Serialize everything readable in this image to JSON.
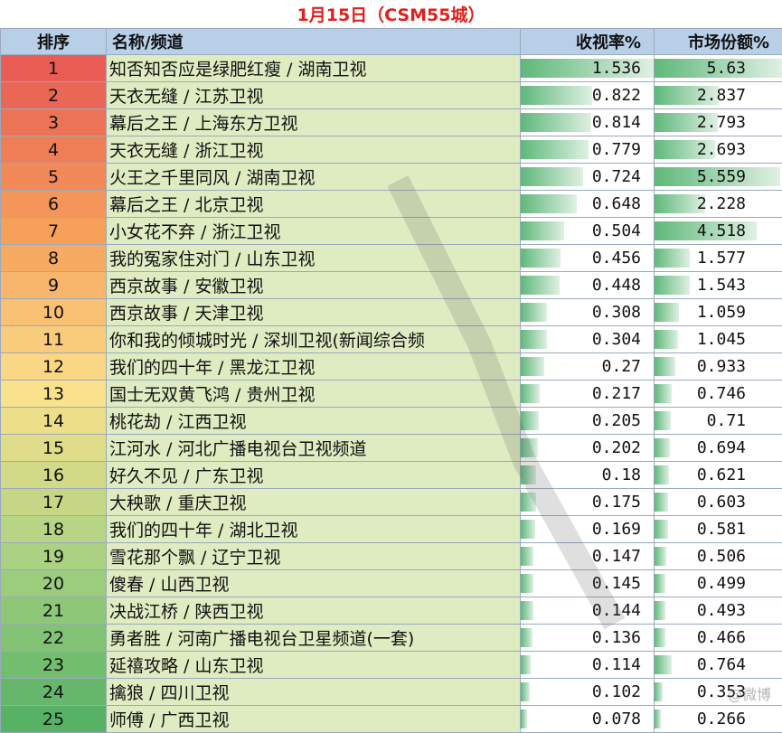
{
  "title": "1月15日（CSM55城）",
  "headers": {
    "rank": "排序",
    "name": "名称/频道",
    "rating": "收视率%",
    "share": "市场份额%"
  },
  "colors": {
    "header_bg": "#b8cfe8",
    "name_bg": "#dfecc2",
    "title_text": "#e0201c",
    "bar_green": "#5fb87a"
  },
  "watermark": "@微博",
  "rows": [
    {
      "rank": "1",
      "name": "知否知否应是绿肥红瘦 / 湖南卫视",
      "rating": "1.536",
      "share": "5.63",
      "rating_value": 1.536,
      "share_value": 5.63
    },
    {
      "rank": "2",
      "name": "天衣无缝 / 江苏卫视",
      "rating": "0.822",
      "share": "2.837",
      "rating_value": 0.822,
      "share_value": 2.837
    },
    {
      "rank": "3",
      "name": "幕后之王 / 上海东方卫视",
      "rating": "0.814",
      "share": "2.793",
      "rating_value": 0.814,
      "share_value": 2.793
    },
    {
      "rank": "4",
      "name": "天衣无缝 / 浙江卫视",
      "rating": "0.779",
      "share": "2.693",
      "rating_value": 0.779,
      "share_value": 2.693
    },
    {
      "rank": "5",
      "name": "火王之千里同风 / 湖南卫视",
      "rating": "0.724",
      "share": "5.559",
      "rating_value": 0.724,
      "share_value": 5.559
    },
    {
      "rank": "6",
      "name": "幕后之王 / 北京卫视",
      "rating": "0.648",
      "share": "2.228",
      "rating_value": 0.648,
      "share_value": 2.228
    },
    {
      "rank": "7",
      "name": "小女花不弃 / 浙江卫视",
      "rating": "0.504",
      "share": "4.518",
      "rating_value": 0.504,
      "share_value": 4.518
    },
    {
      "rank": "8",
      "name": "我的冤家住对门 / 山东卫视",
      "rating": "0.456",
      "share": "1.577",
      "rating_value": 0.456,
      "share_value": 1.577
    },
    {
      "rank": "9",
      "name": "西京故事 / 安徽卫视",
      "rating": "0.448",
      "share": "1.543",
      "rating_value": 0.448,
      "share_value": 1.543
    },
    {
      "rank": "10",
      "name": "西京故事 / 天津卫视",
      "rating": "0.308",
      "share": "1.059",
      "rating_value": 0.308,
      "share_value": 1.059
    },
    {
      "rank": "11",
      "name": "你和我的倾城时光 / 深圳卫视(新闻综合频",
      "rating": "0.304",
      "share": "1.045",
      "rating_value": 0.304,
      "share_value": 1.045
    },
    {
      "rank": "12",
      "name": "我们的四十年 / 黑龙江卫视",
      "rating": "0.27",
      "share": "0.933",
      "rating_value": 0.27,
      "share_value": 0.933
    },
    {
      "rank": "13",
      "name": "国士无双黄飞鸿 / 贵州卫视",
      "rating": "0.217",
      "share": "0.746",
      "rating_value": 0.217,
      "share_value": 0.746
    },
    {
      "rank": "14",
      "name": "桃花劫 / 江西卫视",
      "rating": "0.205",
      "share": "0.71",
      "rating_value": 0.205,
      "share_value": 0.71
    },
    {
      "rank": "15",
      "name": "江河水 / 河北广播电视台卫视频道",
      "rating": "0.202",
      "share": "0.694",
      "rating_value": 0.202,
      "share_value": 0.694
    },
    {
      "rank": "16",
      "name": "好久不见 / 广东卫视",
      "rating": "0.18",
      "share": "0.621",
      "rating_value": 0.18,
      "share_value": 0.621
    },
    {
      "rank": "17",
      "name": "大秧歌 / 重庆卫视",
      "rating": "0.175",
      "share": "0.603",
      "rating_value": 0.175,
      "share_value": 0.603
    },
    {
      "rank": "18",
      "name": "我们的四十年 / 湖北卫视",
      "rating": "0.169",
      "share": "0.581",
      "rating_value": 0.169,
      "share_value": 0.581
    },
    {
      "rank": "19",
      "name": "雪花那个飘 / 辽宁卫视",
      "rating": "0.147",
      "share": "0.506",
      "rating_value": 0.147,
      "share_value": 0.506
    },
    {
      "rank": "20",
      "name": "傻春 / 山西卫视",
      "rating": "0.145",
      "share": "0.499",
      "rating_value": 0.145,
      "share_value": 0.499
    },
    {
      "rank": "21",
      "name": "决战江桥 / 陕西卫视",
      "rating": "0.144",
      "share": "0.493",
      "rating_value": 0.144,
      "share_value": 0.493
    },
    {
      "rank": "22",
      "name": "勇者胜 / 河南广播电视台卫星频道(一套)",
      "rating": "0.136",
      "share": "0.466",
      "rating_value": 0.136,
      "share_value": 0.466
    },
    {
      "rank": "23",
      "name": "延禧攻略 / 山东卫视",
      "rating": "0.114",
      "share": "0.764",
      "rating_value": 0.114,
      "share_value": 0.764
    },
    {
      "rank": "24",
      "name": "擒狼 / 四川卫视",
      "rating": "0.102",
      "share": "0.353",
      "rating_value": 0.102,
      "share_value": 0.353
    },
    {
      "rank": "25",
      "name": "师傅 / 广西卫视",
      "rating": "0.078",
      "share": "0.266",
      "rating_value": 0.078,
      "share_value": 0.266
    }
  ]
}
